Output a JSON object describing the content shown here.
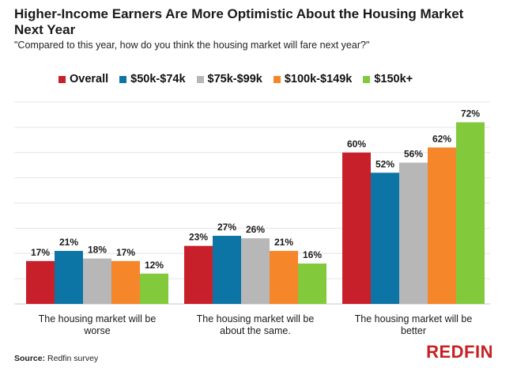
{
  "title": "Higher-Income Earners Are More Optimistic About the Housing Market Next Year",
  "subtitle": "\"Compared to this year, how do you think the housing market will fare next year?\"",
  "source_label": "Source:",
  "source_text": "Redfin survey",
  "logo_text": "REDFIN",
  "colors": {
    "Overall": "#c8202a",
    "$50k-$74k": "#0d75a6",
    "$75k-$99k": "#b7b7b7",
    "$100k-$149k": "#f5862a",
    "$150k+": "#82c93c"
  },
  "chart_data": {
    "type": "bar",
    "categories": [
      "The housing market will be worse",
      "The housing market will be about the same.",
      "The housing market will be better"
    ],
    "category_lines": [
      [
        "The housing market will be",
        "worse"
      ],
      [
        "The housing market will be",
        "about the same."
      ],
      [
        "The housing market will be",
        "better"
      ]
    ],
    "series": [
      {
        "name": "Overall",
        "values": [
          17,
          23,
          60
        ],
        "labels": [
          "17%",
          "23%",
          "60%"
        ]
      },
      {
        "name": "$50k-$74k",
        "values": [
          21,
          27,
          52
        ],
        "labels": [
          "21%",
          "27%",
          "52%"
        ]
      },
      {
        "name": "$75k-$99k",
        "values": [
          18,
          26,
          56
        ],
        "labels": [
          "18%",
          "26%",
          "56%"
        ]
      },
      {
        "name": "$100k-$149k",
        "values": [
          17,
          21,
          62
        ],
        "labels": [
          "17%",
          "21%",
          "62%"
        ]
      },
      {
        "name": "$150k+",
        "values": [
          12,
          16,
          72
        ],
        "labels": [
          "12%",
          "16%",
          "72%"
        ]
      }
    ],
    "ylim": [
      0,
      80
    ],
    "grid": true,
    "legend": "top"
  }
}
